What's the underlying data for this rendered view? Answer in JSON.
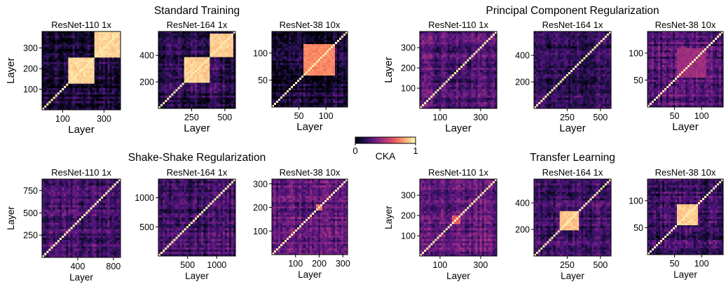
{
  "figure": {
    "colorbar": {
      "label": "CKA",
      "min_label": "0",
      "max_label": "1",
      "colormap": "magma"
    }
  },
  "chart_data": [
    {
      "type": "heatmap",
      "group_title": "Standard Training",
      "title": "ResNet-110 1x",
      "xlabel": "Layer",
      "ylabel": "Layer",
      "n_layers": 380,
      "xticks": [
        100,
        300
      ],
      "yticks": [
        100,
        200,
        300
      ],
      "value_range": [
        0,
        1
      ],
      "blocks": [
        [
          125,
          250
        ],
        [
          250,
          375
        ]
      ],
      "block_level": 0.92,
      "base_level": 0.1
    },
    {
      "type": "heatmap",
      "group_title": "Standard Training",
      "title": "ResNet-164 1x",
      "xlabel": "Layer",
      "ylabel": "",
      "n_layers": 580,
      "xticks": [
        250,
        500
      ],
      "yticks": [
        200,
        400
      ],
      "value_range": [
        0,
        1
      ],
      "blocks": [
        [
          190,
          390
        ],
        [
          390,
          570
        ]
      ],
      "block_level": 0.9,
      "base_level": 0.15
    },
    {
      "type": "heatmap",
      "group_title": "Standard Training",
      "title": "ResNet-38 10x",
      "xlabel": "Layer",
      "ylabel": "",
      "n_layers": 140,
      "xticks": [
        50,
        100
      ],
      "yticks": [
        50,
        100
      ],
      "value_range": [
        0,
        1
      ],
      "blocks": [
        [
          60,
          115
        ]
      ],
      "block_level": 0.75,
      "base_level": 0.1
    },
    {
      "type": "heatmap",
      "group_title": "Principal Component Regularization",
      "title": "ResNet-110 1x",
      "xlabel": "Layer",
      "ylabel": "Layer",
      "n_layers": 380,
      "xticks": [
        100,
        300
      ],
      "yticks": [
        100,
        200,
        300
      ],
      "value_range": [
        0,
        1
      ],
      "blocks": [],
      "block_level": 0.0,
      "base_level": 0.25
    },
    {
      "type": "heatmap",
      "group_title": "Principal Component Regularization",
      "title": "ResNet-164 1x",
      "xlabel": "Layer",
      "ylabel": "",
      "n_layers": 580,
      "xticks": [
        250,
        500
      ],
      "yticks": [
        200,
        400
      ],
      "value_range": [
        0,
        1
      ],
      "blocks": [],
      "block_level": 0.0,
      "base_level": 0.2
    },
    {
      "type": "heatmap",
      "group_title": "Principal Component Regularization",
      "title": "ResNet-38 10x",
      "xlabel": "Layer",
      "ylabel": "",
      "n_layers": 140,
      "xticks": [
        50,
        100
      ],
      "yticks": [
        50,
        100
      ],
      "value_range": [
        0,
        1
      ],
      "blocks": [
        [
          55,
          110
        ]
      ],
      "block_level": 0.45,
      "base_level": 0.25
    },
    {
      "type": "heatmap",
      "group_title": "Shake-Shake Regularization",
      "title": "ResNet-110 1x",
      "xlabel": "Layer",
      "ylabel": "Layer",
      "n_layers": 880,
      "xticks": [
        400,
        800
      ],
      "yticks": [
        250,
        500,
        750
      ],
      "value_range": [
        0,
        1
      ],
      "blocks": [],
      "block_level": 0.0,
      "base_level": 0.22
    },
    {
      "type": "heatmap",
      "group_title": "Shake-Shake Regularization",
      "title": "ResNet-164 1x",
      "xlabel": "Layer",
      "ylabel": "",
      "n_layers": 1320,
      "xticks": [
        500,
        1000
      ],
      "yticks": [
        500,
        1000
      ],
      "value_range": [
        0,
        1
      ],
      "blocks": [],
      "block_level": 0.0,
      "base_level": 0.22
    },
    {
      "type": "heatmap",
      "group_title": "Shake-Shake Regularization",
      "title": "ResNet-38 10x",
      "xlabel": "Layer",
      "ylabel": "",
      "n_layers": 320,
      "xticks": [
        100,
        200,
        300
      ],
      "yticks": [
        100,
        200,
        300
      ],
      "value_range": [
        0,
        1
      ],
      "blocks": [
        [
          190,
          210
        ]
      ],
      "block_level": 0.7,
      "base_level": 0.28
    },
    {
      "type": "heatmap",
      "group_title": "Transfer Learning",
      "title": "ResNet-110 1x",
      "xlabel": "Layer",
      "ylabel": "Layer",
      "n_layers": 380,
      "xticks": [
        100,
        300
      ],
      "yticks": [
        100,
        200,
        300
      ],
      "value_range": [
        0,
        1
      ],
      "blocks": [
        [
          160,
          200
        ]
      ],
      "block_level": 0.65,
      "base_level": 0.3
    },
    {
      "type": "heatmap",
      "group_title": "Transfer Learning",
      "title": "ResNet-164 1x",
      "xlabel": "Layer",
      "ylabel": "",
      "n_layers": 580,
      "xticks": [
        250,
        500
      ],
      "yticks": [
        200,
        400
      ],
      "value_range": [
        0,
        1
      ],
      "blocks": [
        [
          200,
          340
        ]
      ],
      "block_level": 0.88,
      "base_level": 0.2
    },
    {
      "type": "heatmap",
      "group_title": "Transfer Learning",
      "title": "ResNet-38 10x",
      "xlabel": "Layer",
      "ylabel": "",
      "n_layers": 140,
      "xticks": [
        50,
        100
      ],
      "yticks": [
        50,
        100
      ],
      "value_range": [
        0,
        1
      ],
      "blocks": [
        [
          55,
          95
        ]
      ],
      "block_level": 0.9,
      "base_level": 0.2
    }
  ]
}
